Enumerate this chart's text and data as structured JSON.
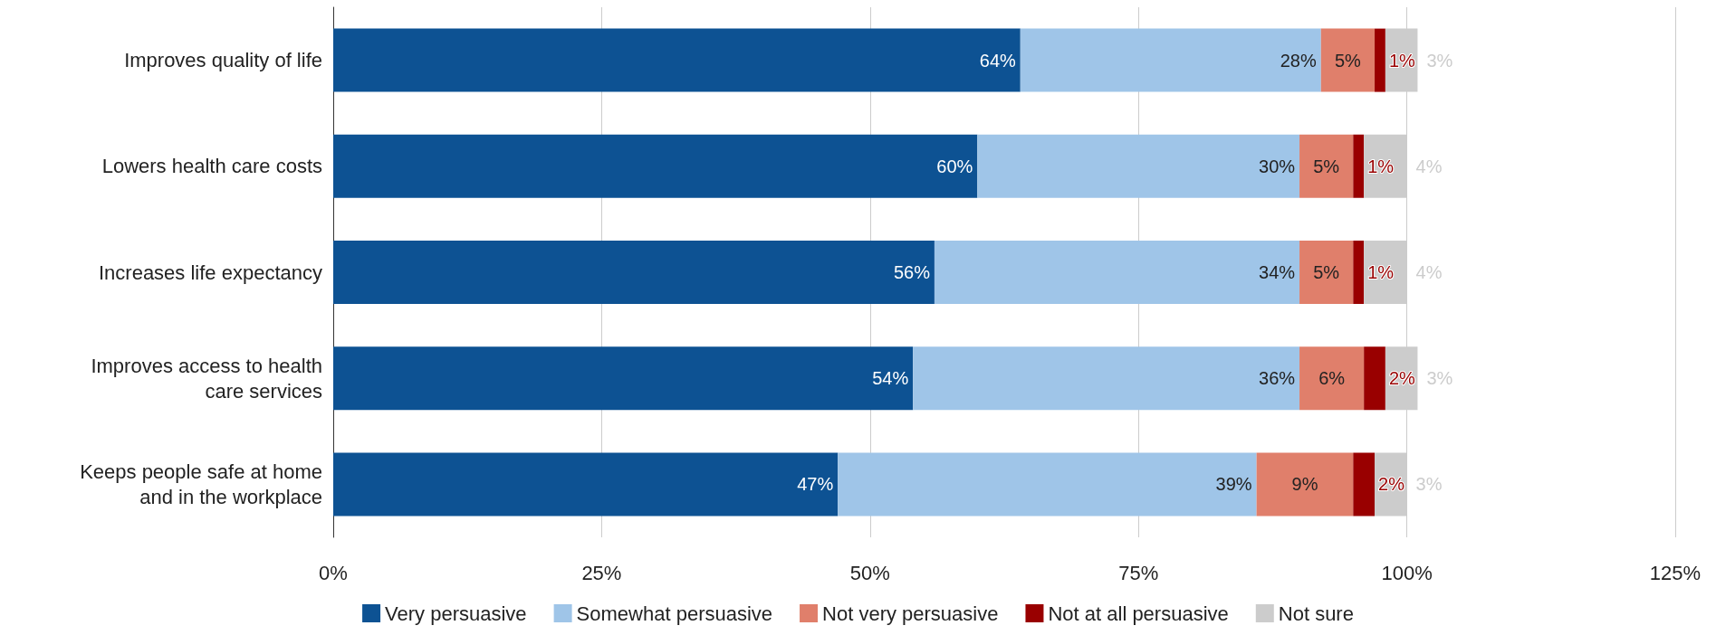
{
  "chart_data": {
    "type": "bar",
    "orientation": "horizontal",
    "stacked": true,
    "categories": [
      "Improves quality of life",
      "Lowers health care costs",
      "Increases life expectancy",
      "Improves access to health\ncare services",
      "Keeps people safe at home\nand in the workplace"
    ],
    "series": [
      {
        "name": "Very persuasive",
        "color": "#0d5293",
        "values": [
          64,
          60,
          56,
          54,
          47
        ],
        "value_labels": [
          "64%",
          "60%",
          "56%",
          "54%",
          "47%"
        ]
      },
      {
        "name": "Somewhat persuasive",
        "color": "#9fc5e8",
        "values": [
          28,
          30,
          34,
          36,
          39
        ],
        "value_labels": [
          "28%",
          "30%",
          "34%",
          "36%",
          "39%"
        ]
      },
      {
        "name": "Not very persuasive",
        "color": "#e07f6b",
        "values": [
          5,
          5,
          5,
          6,
          9
        ],
        "value_labels": [
          "5%",
          "5%",
          "5%",
          "6%",
          "9%"
        ]
      },
      {
        "name": "Not at all persuasive",
        "color": "#990000",
        "values": [
          1,
          1,
          1,
          2,
          2
        ],
        "value_labels": [
          "1%",
          "1%",
          "1%",
          "2%",
          "2%"
        ]
      },
      {
        "name": "Not sure",
        "color": "#cccccc",
        "values": [
          3,
          4,
          4,
          3,
          3
        ],
        "value_labels": [
          "3%",
          "4%",
          "4%",
          "3%",
          "3%"
        ]
      }
    ],
    "xlim": [
      0,
      125
    ],
    "xticks": [
      {
        "value": 0,
        "label": "0%"
      },
      {
        "value": 25,
        "label": "25%"
      },
      {
        "value": 50,
        "label": "50%"
      },
      {
        "value": 75,
        "label": "75%"
      },
      {
        "value": 100,
        "label": "100%"
      },
      {
        "value": 125,
        "label": "125%"
      }
    ],
    "grid": "x",
    "legend": "bottom"
  }
}
